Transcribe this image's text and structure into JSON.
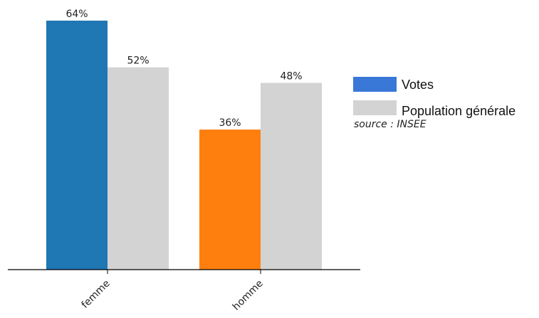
{
  "chart_data": {
    "type": "bar",
    "categories": [
      "femme",
      "homme"
    ],
    "series": [
      {
        "name": "Votes",
        "values": [
          64,
          36
        ],
        "labels": [
          "64%",
          "36%"
        ],
        "colors": [
          "#1f77b4",
          "#ff7f0e"
        ]
      },
      {
        "name": "Population générale",
        "values": [
          52,
          48
        ],
        "labels": [
          "52%",
          "48%"
        ],
        "colors": [
          "#d3d3d3",
          "#d3d3d3"
        ]
      }
    ],
    "ylim": [
      0,
      64
    ],
    "grid": false,
    "legend": {
      "placement": "right",
      "entries": [
        {
          "label": "Votes",
          "color": "#3a78d8"
        },
        {
          "label": "Population générale",
          "color": "#d3d3d3"
        }
      ]
    },
    "source": "source : INSEE"
  }
}
